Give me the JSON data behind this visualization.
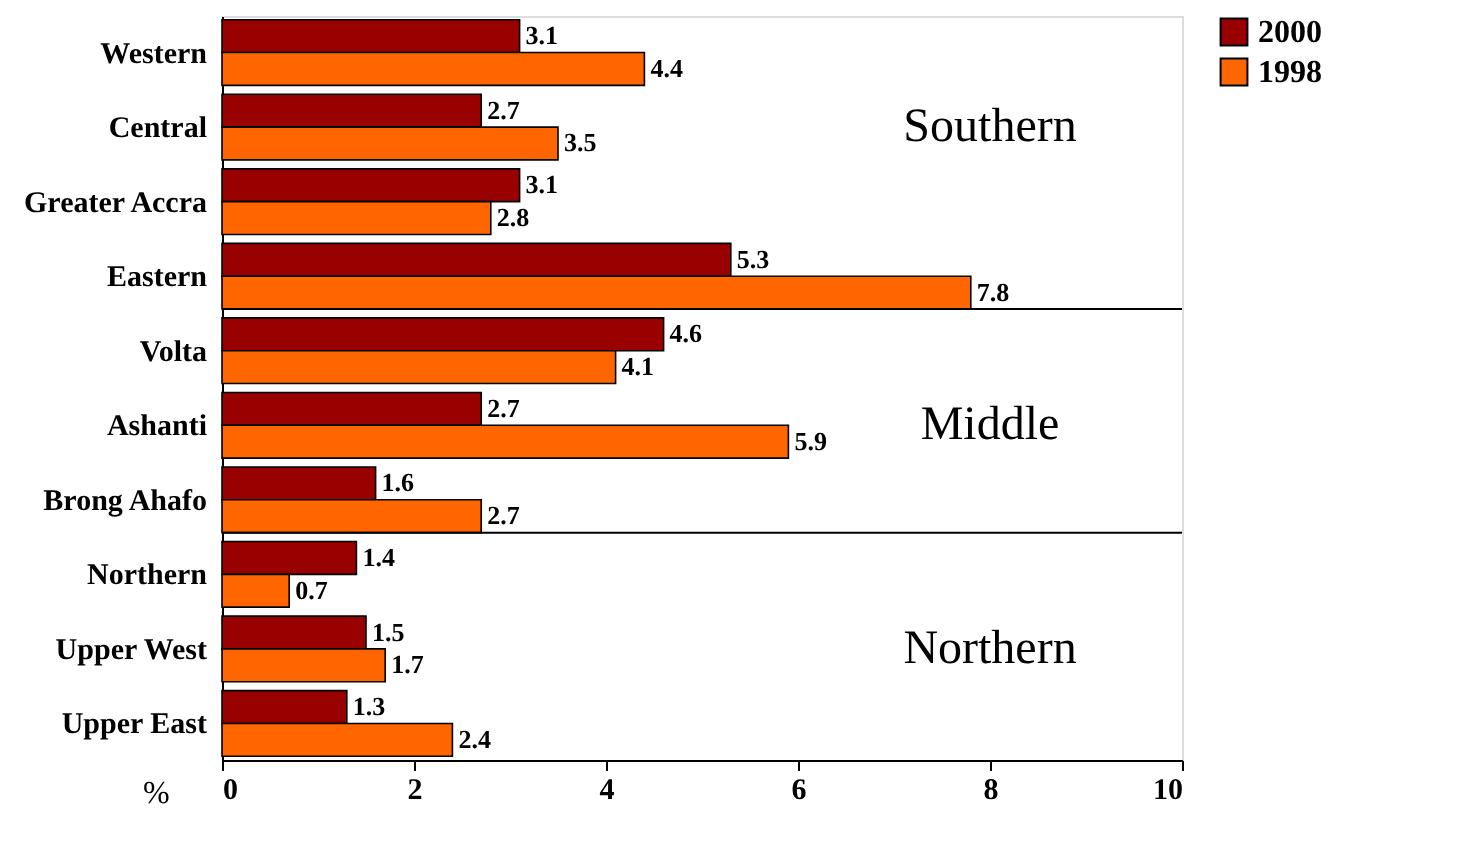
{
  "chart_data": {
    "type": "bar",
    "orientation": "horizontal",
    "categories": [
      "Western",
      "Central",
      "Greater Accra",
      "Eastern",
      "Volta",
      "Ashanti",
      "Brong Ahafo",
      "Northern",
      "Upper West",
      "Upper East"
    ],
    "series": [
      {
        "name": "2000",
        "color": "#990000",
        "values": [
          3.1,
          2.7,
          3.1,
          5.3,
          4.6,
          2.7,
          1.6,
          1.4,
          1.5,
          1.3
        ]
      },
      {
        "name": "1998",
        "color": "#ff6600",
        "values": [
          4.4,
          3.5,
          2.8,
          7.8,
          4.1,
          5.9,
          2.7,
          0.7,
          1.7,
          2.4
        ]
      }
    ],
    "xlim": [
      0,
      10
    ],
    "xticks": [
      0,
      2,
      4,
      6,
      8,
      10
    ],
    "xlabel": "%",
    "data_labels": true,
    "grid": false,
    "legend": "right",
    "annotations": [
      "Southern",
      "Middle",
      "Northern"
    ]
  }
}
